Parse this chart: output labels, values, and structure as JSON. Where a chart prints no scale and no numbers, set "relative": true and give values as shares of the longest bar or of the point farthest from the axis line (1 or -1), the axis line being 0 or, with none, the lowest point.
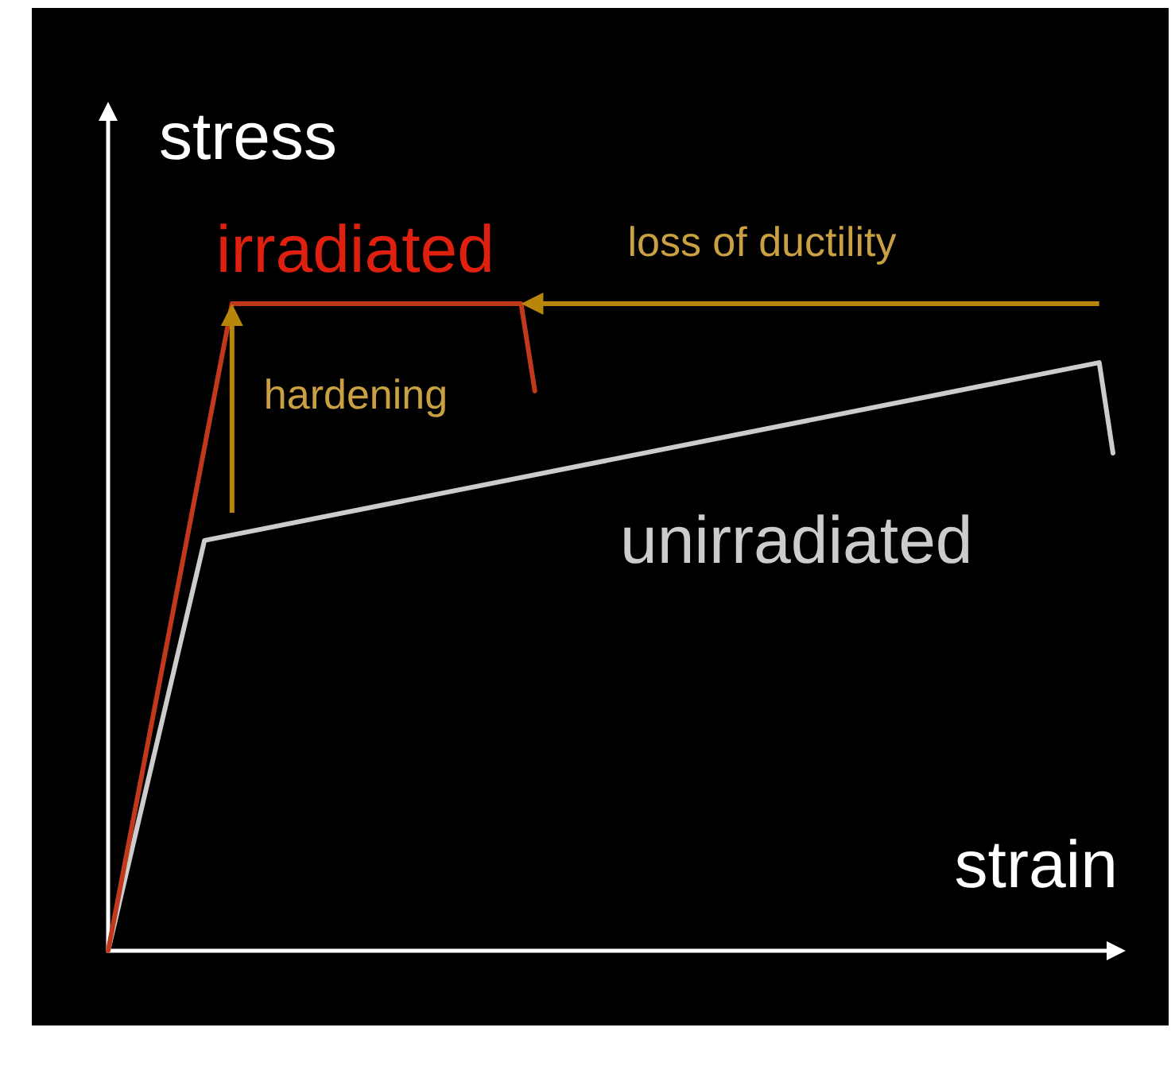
{
  "chart_data": {
    "type": "line",
    "relative": true,
    "xlabel": "strain",
    "ylabel": "stress",
    "categories": [
      null,
      null,
      null,
      null,
      null,
      null,
      null,
      null,
      null,
      null,
      null,
      null,
      null,
      null,
      null,
      null,
      null,
      null,
      null,
      null,
      null,
      null,
      null,
      null,
      null,
      null,
      null,
      null,
      null,
      null,
      null,
      null,
      null,
      null,
      null,
      null,
      null,
      null,
      null,
      null,
      null,
      null,
      null,
      null,
      null,
      null,
      null,
      null,
      null,
      null,
      null,
      null,
      null,
      null,
      null,
      null,
      null,
      null,
      null,
      null,
      null,
      null,
      null,
      null,
      null,
      null,
      null,
      null,
      null,
      null,
      null,
      null,
      null,
      null
    ],
    "series": [
      {
        "name": "unirradiated",
        "color": "#cccccc",
        "values": [
          0,
          null,
          null,
          null,
          null,
          null,
          null,
          0.634,
          null,
          null,
          null,
          null,
          null,
          null,
          null,
          null,
          null,
          null,
          null,
          null,
          null,
          null,
          null,
          null,
          null,
          null,
          null,
          null,
          null,
          null,
          null,
          null,
          null,
          null,
          null,
          null,
          null,
          null,
          null,
          null,
          null,
          null,
          null,
          null,
          null,
          null,
          null,
          null,
          null,
          null,
          null,
          null,
          null,
          null,
          null,
          null,
          null,
          null,
          null,
          null,
          null,
          null,
          null,
          null,
          null,
          null,
          null,
          null,
          null,
          null,
          null,
          null,
          0.909,
          0.769
        ]
      },
      {
        "name": "irradiated",
        "color": "#c0391b",
        "values": [
          0,
          null,
          null,
          null,
          null,
          null,
          null,
          null,
          null,
          1,
          null,
          null,
          null,
          null,
          null,
          null,
          null,
          null,
          null,
          null,
          null,
          null,
          null,
          null,
          null,
          null,
          null,
          null,
          null,
          null,
          1,
          0.865,
          null,
          null,
          null,
          null,
          null,
          null,
          null,
          null,
          null,
          null,
          null,
          null,
          null,
          null,
          null,
          null,
          null,
          null,
          null,
          null,
          null,
          null,
          null,
          null,
          null,
          null,
          null,
          null,
          null,
          null,
          null,
          null,
          null,
          null,
          null,
          null,
          null,
          null,
          null,
          null,
          null,
          null
        ]
      }
    ],
    "annotations": [
      "hardening",
      "loss of ductility"
    ]
  }
}
